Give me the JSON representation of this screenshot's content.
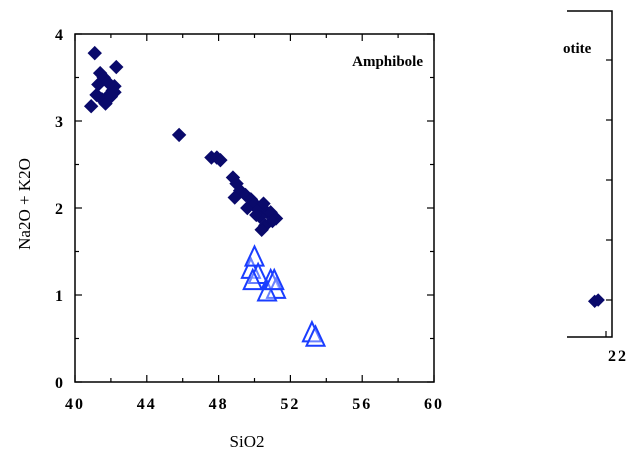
{
  "chart_data": [
    {
      "type": "scatter",
      "annotation": "Amphibole",
      "xlabel": "SiO2",
      "ylabel": "Na2O + K2O",
      "xlim": [
        40,
        60
      ],
      "ylim": [
        0,
        4
      ],
      "xticks": [
        "40",
        "44",
        "48",
        "52",
        "56",
        "60"
      ],
      "yticks": [
        "0",
        "1",
        "2",
        "3",
        "4"
      ],
      "grid": false,
      "series": [
        {
          "marker": "diamond",
          "color": "#0a0a6b",
          "points": [
            [
              41.1,
              3.78
            ],
            [
              41.4,
              3.55
            ],
            [
              41.6,
              3.5
            ],
            [
              41.3,
              3.42
            ],
            [
              41.8,
              3.45
            ],
            [
              42.1,
              3.35
            ],
            [
              41.9,
              3.3
            ],
            [
              41.5,
              3.25
            ],
            [
              42.2,
              3.4
            ],
            [
              42.3,
              3.62
            ],
            [
              41.7,
              3.2
            ],
            [
              41.2,
              3.3
            ],
            [
              42.0,
              3.28
            ],
            [
              40.9,
              3.17
            ],
            [
              42.2,
              3.33
            ],
            [
              45.8,
              2.84
            ],
            [
              47.6,
              2.58
            ],
            [
              47.9,
              2.58
            ],
            [
              48.1,
              2.55
            ],
            [
              48.8,
              2.35
            ],
            [
              49.0,
              2.28
            ],
            [
              49.2,
              2.2
            ],
            [
              49.5,
              2.15
            ],
            [
              49.8,
              2.1
            ],
            [
              48.9,
              2.12
            ],
            [
              50.0,
              2.05
            ],
            [
              50.2,
              1.98
            ],
            [
              50.5,
              2.05
            ],
            [
              50.7,
              1.95
            ],
            [
              50.3,
              1.9
            ],
            [
              50.9,
              1.95
            ],
            [
              51.2,
              1.88
            ],
            [
              50.6,
              1.8
            ],
            [
              50.4,
              1.75
            ],
            [
              49.6,
              2.0
            ],
            [
              50.1,
              1.92
            ],
            [
              51.0,
              1.85
            ]
          ]
        },
        {
          "marker": "triangle-open",
          "color": "#1a3dff",
          "points": [
            [
              49.8,
              1.28
            ],
            [
              50.0,
              1.42
            ],
            [
              50.2,
              1.22
            ],
            [
              49.9,
              1.15
            ],
            [
              50.9,
              1.15
            ],
            [
              51.2,
              1.05
            ],
            [
              50.7,
              1.02
            ],
            [
              51.1,
              1.15
            ],
            [
              53.2,
              0.55
            ],
            [
              53.4,
              0.5
            ]
          ]
        }
      ]
    },
    {
      "type": "scatter",
      "annotation": "otite",
      "xticks": [
        "22"
      ],
      "series": [
        {
          "marker": "diamond",
          "color": "#0a0a6b",
          "points": [
            [
              21.6,
              0.85
            ],
            [
              21.8,
              0.88
            ]
          ]
        }
      ]
    }
  ]
}
